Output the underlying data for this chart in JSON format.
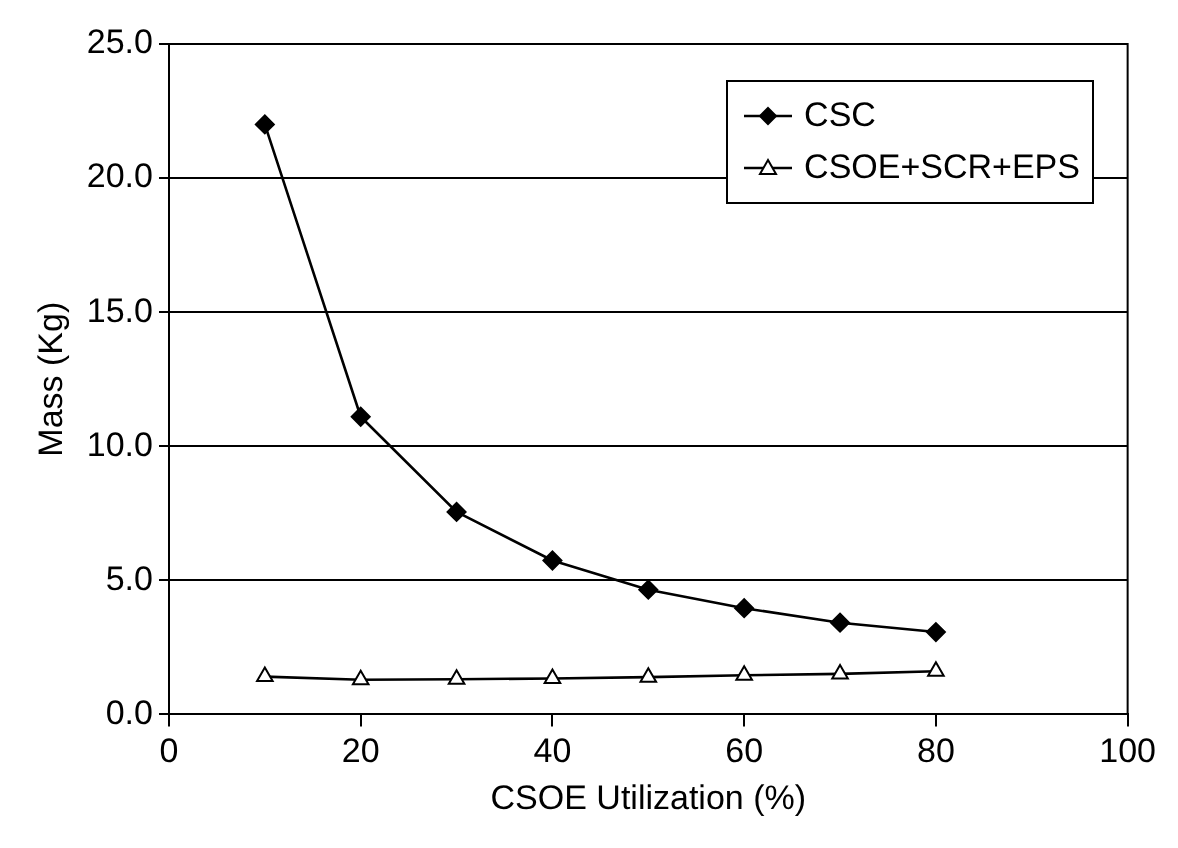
{
  "chart_data": {
    "type": "line",
    "xlabel": "CSOE Utilization (%)",
    "ylabel": "Mass (Kg)",
    "x": [
      10,
      20,
      30,
      40,
      50,
      60,
      70,
      80
    ],
    "series": [
      {
        "name": "CSC",
        "color": "#000000",
        "marker": "diamond",
        "values": [
          22.0,
          11.1,
          7.55,
          5.74,
          4.65,
          3.96,
          3.42,
          3.07
        ]
      },
      {
        "name": "CSOE+SCR+EPS",
        "color": "#000000",
        "marker": "triangle",
        "values": [
          1.41,
          1.29,
          1.31,
          1.34,
          1.39,
          1.46,
          1.51,
          1.61
        ]
      }
    ],
    "xlim": [
      0,
      100
    ],
    "xticks": [
      0,
      20,
      40,
      60,
      80,
      100
    ],
    "ylim": [
      0,
      25
    ],
    "yticks": [
      {
        "value": 0,
        "label": "0.0"
      },
      {
        "value": 5,
        "label": "5.0"
      },
      {
        "value": 10,
        "label": "10.0"
      },
      {
        "value": 15,
        "label": "15.0"
      },
      {
        "value": 20,
        "label": "20.0"
      },
      {
        "value": 25,
        "label": "25.0"
      }
    ],
    "grid": "y",
    "legend": "top right",
    "line_style": "solid"
  }
}
